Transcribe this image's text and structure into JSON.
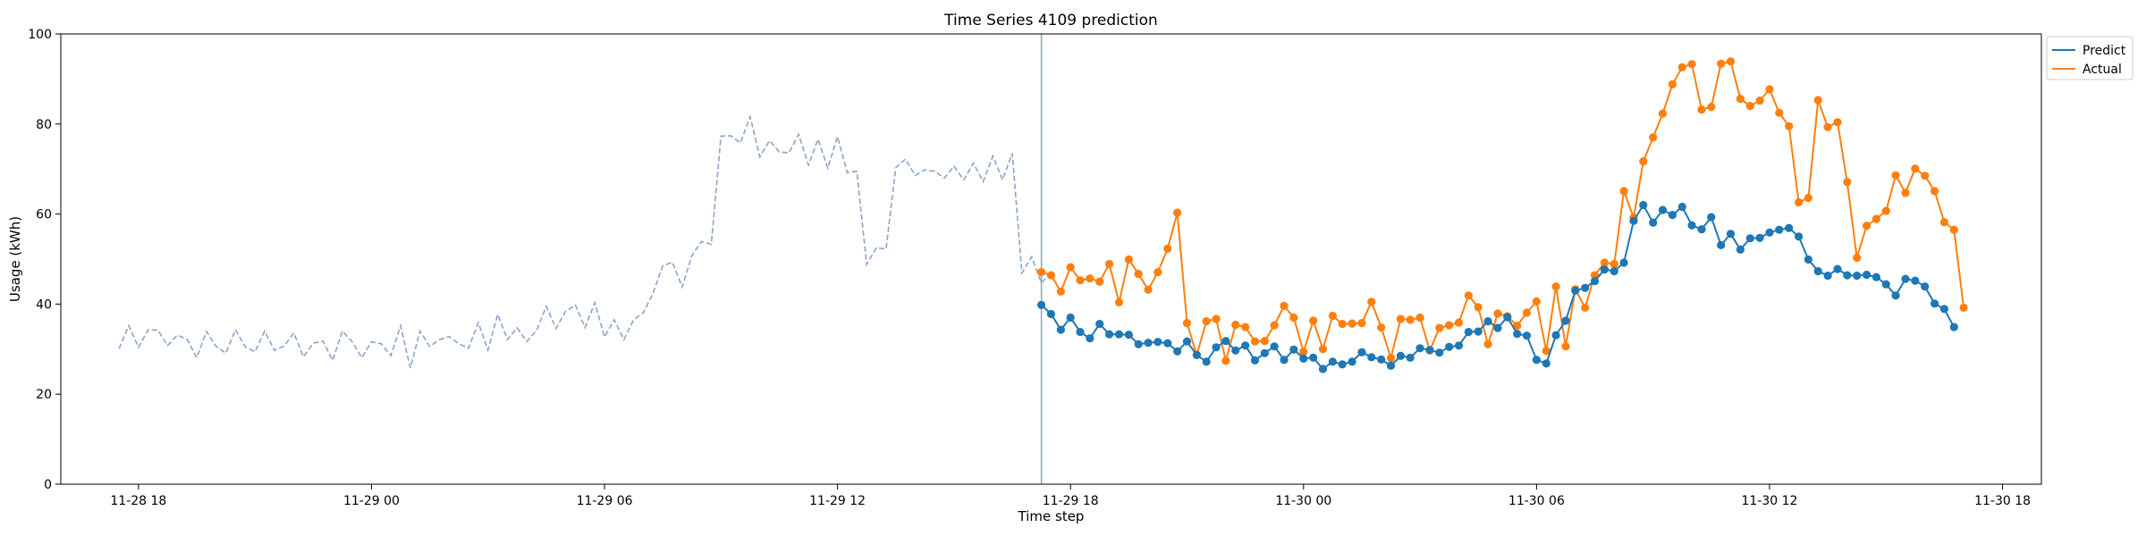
{
  "chart_data": {
    "type": "line",
    "title": "Time Series 4109 prediction",
    "xlabel": "Time step",
    "ylabel": "Usage (kWh)",
    "ylim": [
      0,
      100
    ],
    "yticks": [
      0,
      20,
      40,
      60,
      80,
      100
    ],
    "x_start": "2024-11-28 16:00",
    "x_end": "2024-11-30 19:00",
    "xticks": [
      {
        "t": "2024-11-28 18:00",
        "label": "11-28 18"
      },
      {
        "t": "2024-11-29 00:00",
        "label": "11-29 00"
      },
      {
        "t": "2024-11-29 06:00",
        "label": "11-29 06"
      },
      {
        "t": "2024-11-29 12:00",
        "label": "11-29 12"
      },
      {
        "t": "2024-11-29 18:00",
        "label": "11-29 18"
      },
      {
        "t": "2024-11-30 00:00",
        "label": "11-30 00"
      },
      {
        "t": "2024-11-30 06:00",
        "label": "11-30 06"
      },
      {
        "t": "2024-11-30 12:00",
        "label": "11-30 12"
      },
      {
        "t": "2024-11-30 18:00",
        "label": "11-30 18"
      }
    ],
    "history": {
      "start": "2024-11-28 17:30",
      "step_minutes": 15,
      "color": "#8aa4c8",
      "style": "dashed",
      "values": [
        30.1,
        35.2,
        30.4,
        34.3,
        34.2,
        30.8,
        33.1,
        32.2,
        28.1,
        33.9,
        30.6,
        29.1,
        34.3,
        30.5,
        29.4,
        34.0,
        29.7,
        30.7,
        33.6,
        28.3,
        31.3,
        31.8,
        27.5,
        34.0,
        31.7,
        28.1,
        31.6,
        31.2,
        28.6,
        35.2,
        25.8,
        34.0,
        30.6,
        32.1,
        32.8,
        31.2,
        30.2,
        35.9,
        29.8,
        37.7,
        32.1,
        34.7,
        31.7,
        34.1,
        39.5,
        34.6,
        38.4,
        39.8,
        34.8,
        40.3,
        32.7,
        36.5,
        32.1,
        36.5,
        38.1,
        42.4,
        48.5,
        49.3,
        43.8,
        50.8,
        53.9,
        53.3,
        77.3,
        77.4,
        75.8,
        81.6,
        72.7,
        76.3,
        73.8,
        73.6,
        77.7,
        70.9,
        76.6,
        70.2,
        77.2,
        69.2,
        69.5,
        48.8,
        52.5,
        52.2,
        70.3,
        72.2,
        68.6,
        69.8,
        69.5,
        68.0,
        70.6,
        67.6,
        71.3,
        67.2,
        72.9,
        67.6,
        73.5,
        46.9,
        50.5,
        44.7,
        47.0
      ]
    },
    "forecast_start_line": {
      "t": "2024-11-29 17:15",
      "color": "#8aa4c8"
    },
    "series": [
      {
        "name": "Predict",
        "color": "#1f77b4",
        "start": "2024-11-29 17:15",
        "step_minutes": 15,
        "values": [
          39.8,
          37.8,
          34.3,
          37.0,
          33.8,
          32.4,
          35.6,
          33.3,
          33.3,
          33.2,
          31.1,
          31.4,
          31.6,
          31.3,
          29.5,
          31.7,
          28.7,
          27.2,
          30.4,
          31.8,
          29.7,
          30.8,
          27.5,
          29.1,
          30.6,
          27.6,
          29.9,
          27.9,
          28.1,
          25.6,
          27.2,
          26.6,
          27.2,
          29.3,
          28.2,
          27.7,
          26.3,
          28.5,
          28.1,
          30.2,
          29.8,
          29.2,
          30.5,
          30.8,
          33.8,
          33.9,
          36.2,
          34.7,
          37.1,
          33.4,
          33.0,
          27.6,
          26.8,
          33.1,
          36.3,
          43.0,
          43.6,
          45.1,
          47.7,
          47.3,
          49.2,
          58.5,
          62.0,
          58.1,
          60.9,
          59.8,
          61.6,
          57.5,
          56.6,
          59.3,
          53.1,
          55.6,
          52.1,
          54.6,
          54.7,
          55.9,
          56.5,
          56.9,
          55.0,
          49.9,
          47.3,
          46.3,
          47.8,
          46.4,
          46.3,
          46.5,
          46.0,
          44.4,
          41.9,
          45.6,
          45.2,
          43.9,
          40.1,
          38.9,
          34.9
        ]
      },
      {
        "name": "Actual",
        "color": "#ff7f0e",
        "start": "2024-11-29 17:15",
        "step_minutes": 15,
        "values": [
          47.1,
          46.4,
          42.8,
          48.2,
          45.3,
          45.7,
          45.0,
          48.9,
          40.4,
          49.9,
          46.7,
          43.2,
          47.1,
          52.3,
          60.3,
          35.8,
          28.7,
          36.2,
          36.7,
          27.4,
          35.4,
          34.9,
          31.7,
          31.8,
          35.3,
          39.6,
          37.0,
          29.4,
          36.3,
          30.0,
          37.4,
          35.6,
          35.7,
          35.8,
          40.5,
          34.8,
          28.0,
          36.7,
          36.5,
          37.0,
          29.7,
          34.7,
          35.3,
          35.9,
          41.9,
          39.3,
          31.1,
          37.9,
          37.3,
          35.2,
          38.1,
          40.6,
          29.6,
          43.9,
          30.6,
          43.3,
          39.2,
          46.4,
          49.2,
          48.9,
          65.1,
          59.2,
          71.7,
          77.0,
          82.3,
          88.8,
          92.6,
          93.3,
          83.2,
          83.8,
          93.4,
          93.9,
          85.6,
          84.0,
          85.2,
          87.7,
          82.5,
          79.5,
          62.6,
          63.6,
          85.3,
          79.3,
          80.4,
          67.1,
          50.3,
          57.4,
          58.9,
          60.7,
          68.6,
          64.7,
          70.1,
          68.5,
          65.1,
          58.2,
          56.5,
          39.2
        ]
      }
    ],
    "legend": {
      "placement": "outside top-right"
    },
    "grid": false
  }
}
